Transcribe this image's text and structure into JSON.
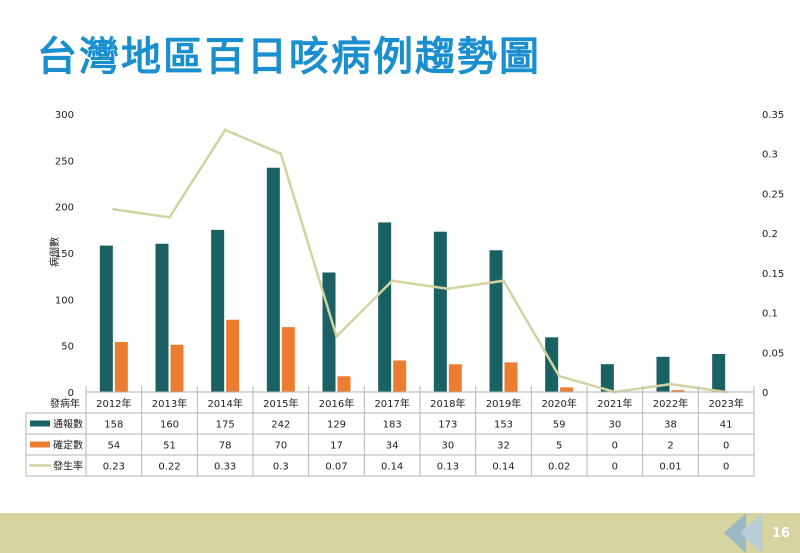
{
  "slide": {
    "title": "台灣地區百日咳病例趨勢圖",
    "page_number": "16"
  },
  "colors": {
    "title": "#1a8fd0",
    "reported_bar": "#1a6163",
    "confirmed_bar": "#ec7c30",
    "rate_line": "#d2d3a0",
    "footer_band": "#d6d4a1",
    "footer_arrows": "#9bb8c6"
  },
  "chart_data": {
    "type": "bar",
    "title": "",
    "ylabel": "病例數",
    "ylim": [
      0,
      300
    ],
    "y_ticks": [
      "0",
      "50",
      "100",
      "150",
      "200",
      "250",
      "300"
    ],
    "y2lim": [
      0,
      0.35
    ],
    "y2_ticks": [
      "0",
      "0.05",
      "0.1",
      "0.15",
      "0.2",
      "0.25",
      "0.3",
      "0.35"
    ],
    "table_header": "發病年",
    "categories": [
      "2012年",
      "2013年",
      "2014年",
      "2015年",
      "2016年",
      "2017年",
      "2018年",
      "2019年",
      "2020年",
      "2021年",
      "2022年",
      "2023年"
    ],
    "series": [
      {
        "name": "通報數",
        "type": "bar",
        "axis": "left",
        "values": [
          158,
          160,
          175,
          242,
          129,
          183,
          173,
          153,
          59,
          30,
          38,
          41
        ]
      },
      {
        "name": "確定數",
        "type": "bar",
        "axis": "left",
        "values": [
          54,
          51,
          78,
          70,
          17,
          34,
          30,
          32,
          5,
          0,
          2,
          0
        ]
      },
      {
        "name": "發生率",
        "type": "line",
        "axis": "right",
        "values": [
          0.23,
          0.22,
          0.33,
          0.3,
          0.07,
          0.14,
          0.13,
          0.14,
          0.02,
          0,
          0.01,
          0
        ]
      }
    ],
    "grid": false,
    "legend": "data-table-left"
  }
}
